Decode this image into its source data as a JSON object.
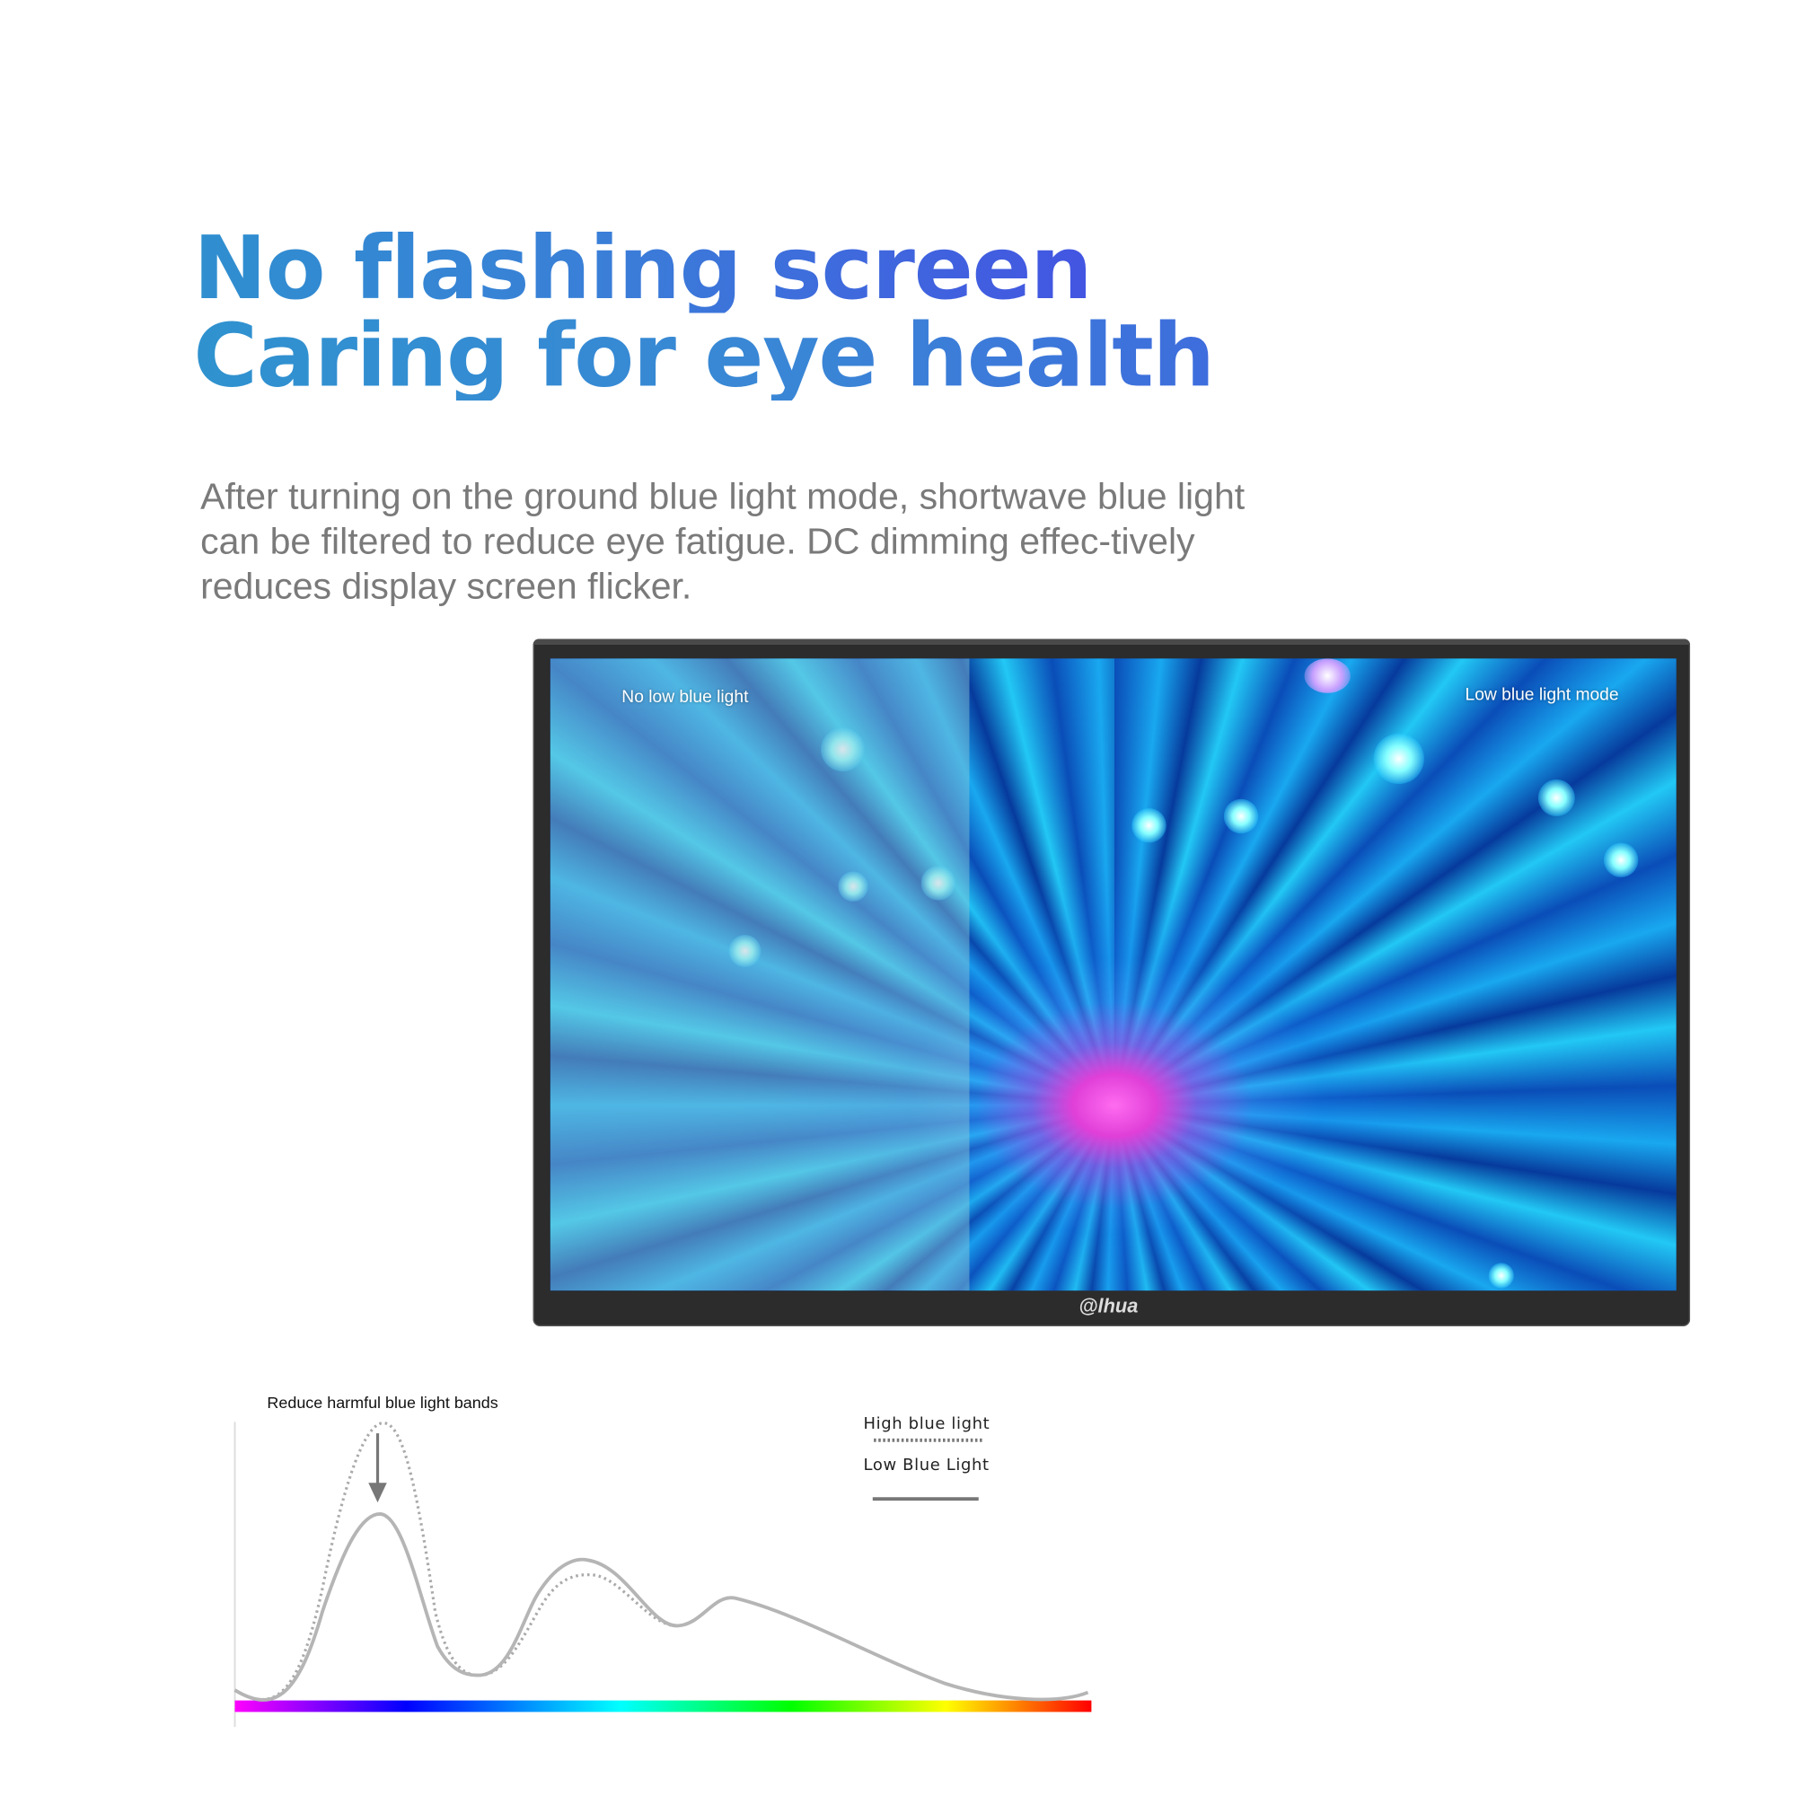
{
  "headline": {
    "line1": "No flashing screen",
    "line2": "Caring for eye health"
  },
  "description": "After turning on the ground blue light mode, shortwave blue light can be filtered to reduce eye fatigue. DC dimming effec-tively reduces display screen flicker.",
  "monitor": {
    "left_label": "No low blue light",
    "right_label": "Low blue light mode",
    "brand_logo": "alhua"
  },
  "spectrum_diagram": {
    "annotation": "Reduce harmful blue light bands",
    "legend": [
      {
        "label": "High blue light",
        "style": "dotted"
      },
      {
        "label": "Low Blue Light",
        "style": "solid"
      }
    ],
    "spectrum_colors": [
      "#ff00ff",
      "#0000ff",
      "#00ffff",
      "#00ff00",
      "#ffff00",
      "#ff0000"
    ],
    "curve_color": "#b5b5b5"
  }
}
